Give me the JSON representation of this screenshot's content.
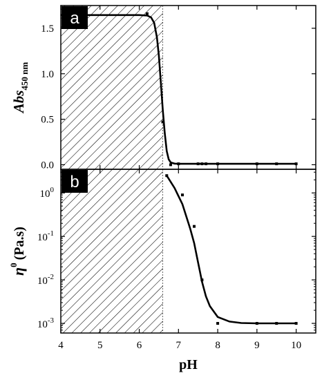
{
  "chart_data": [
    {
      "panel": "a",
      "type": "scatter",
      "ylabel": "Abs",
      "ylabel_subscript": "450 nm",
      "xlim": [
        4,
        10.5
      ],
      "ylim": [
        -0.05,
        1.75
      ],
      "yticks": [
        0.0,
        0.5,
        1.0,
        1.5
      ],
      "ytick_labels": [
        "0.0",
        "0.5",
        "1.0",
        "1.5"
      ],
      "shaded_region": [
        4,
        6.6
      ],
      "points": [
        {
          "x": 6.2,
          "y": 1.66
        },
        {
          "x": 6.6,
          "y": 0.47
        },
        {
          "x": 6.8,
          "y": 0.0
        },
        {
          "x": 7.0,
          "y": 0.01
        },
        {
          "x": 7.5,
          "y": 0.01
        },
        {
          "x": 7.6,
          "y": 0.01
        },
        {
          "x": 7.7,
          "y": 0.01
        },
        {
          "x": 8.0,
          "y": 0.01
        },
        {
          "x": 9.0,
          "y": 0.01
        },
        {
          "x": 9.5,
          "y": 0.01
        },
        {
          "x": 10.0,
          "y": 0.01
        }
      ],
      "fit_curve": [
        [
          4.0,
          1.645
        ],
        [
          6.0,
          1.645
        ],
        [
          6.2,
          1.64
        ],
        [
          6.3,
          1.62
        ],
        [
          6.38,
          1.56
        ],
        [
          6.45,
          1.4
        ],
        [
          6.5,
          1.2
        ],
        [
          6.55,
          0.9
        ],
        [
          6.6,
          0.6
        ],
        [
          6.65,
          0.35
        ],
        [
          6.7,
          0.15
        ],
        [
          6.75,
          0.06
        ],
        [
          6.8,
          0.025
        ],
        [
          6.9,
          0.012
        ],
        [
          7.0,
          0.01
        ],
        [
          10.0,
          0.01
        ]
      ]
    },
    {
      "panel": "b",
      "type": "scatter",
      "ylabel": "η",
      "ylabel_superscript": "0",
      "ylabel_unit": "(Pa.s)",
      "yscale": "log",
      "xlim": [
        4,
        10.5
      ],
      "ylim": [
        0.0006,
        3.5
      ],
      "yticks": [
        0.001,
        0.01,
        0.1,
        1
      ],
      "ytick_labels": [
        {
          "base": "10",
          "exp": "-3"
        },
        {
          "base": "10",
          "exp": "-2"
        },
        {
          "base": "10",
          "exp": "-1"
        },
        {
          "base": "10",
          "exp": "0"
        }
      ],
      "xlabel": "pH",
      "xticks": [
        4,
        5,
        6,
        7,
        8,
        9,
        10
      ],
      "xtick_labels": [
        "4",
        "5",
        "6",
        "7",
        "8",
        "9",
        "10"
      ],
      "shaded_region": [
        4,
        6.6
      ],
      "points": [
        {
          "x": 6.7,
          "y": 2.5
        },
        {
          "x": 7.1,
          "y": 0.9
        },
        {
          "x": 7.4,
          "y": 0.17
        },
        {
          "x": 7.6,
          "y": 0.01
        },
        {
          "x": 8.0,
          "y": 0.001
        },
        {
          "x": 9.0,
          "y": 0.001
        },
        {
          "x": 9.5,
          "y": 0.001
        },
        {
          "x": 10.0,
          "y": 0.001
        }
      ],
      "fit_curve": [
        [
          6.7,
          2.5
        ],
        [
          6.9,
          1.3
        ],
        [
          7.1,
          0.55
        ],
        [
          7.3,
          0.15
        ],
        [
          7.4,
          0.07
        ],
        [
          7.5,
          0.025
        ],
        [
          7.6,
          0.009
        ],
        [
          7.7,
          0.0042
        ],
        [
          7.8,
          0.0025
        ],
        [
          8.0,
          0.0014
        ],
        [
          8.3,
          0.0011
        ],
        [
          8.6,
          0.00102
        ],
        [
          9.0,
          0.001
        ],
        [
          10.0,
          0.001
        ]
      ]
    }
  ]
}
